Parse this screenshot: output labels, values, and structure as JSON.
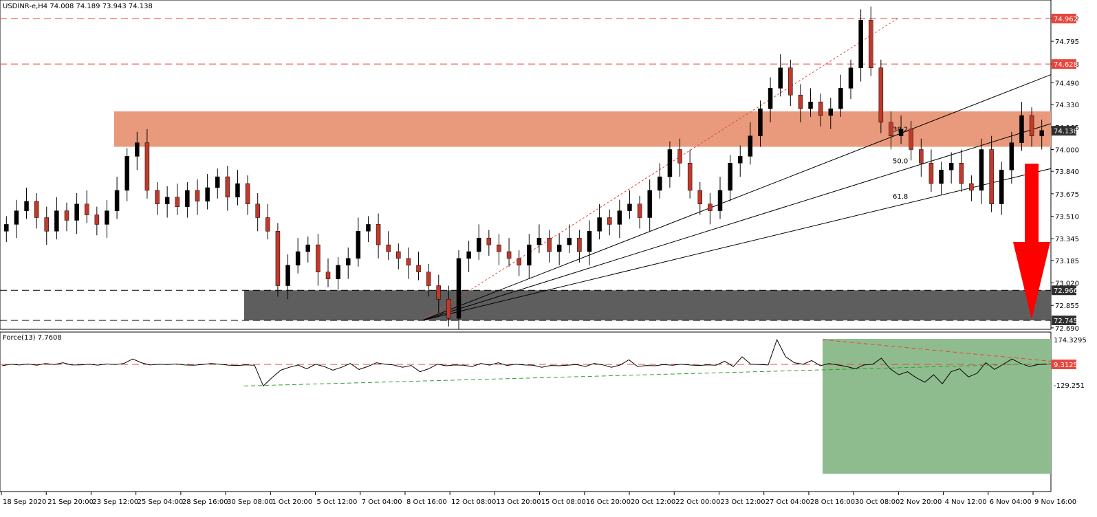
{
  "main_header": {
    "symbol": "USDINR-e,H4",
    "ohlc": "74.008 74.189 73.943 74.138"
  },
  "force_header": {
    "label": "Force(13) 7.7608"
  },
  "chart_data": [
    {
      "type": "candlestick",
      "panel": "price",
      "y_ticks": [
        "74.962",
        "74.795",
        "74.628",
        "74.490",
        "74.330",
        "74.165",
        "74.000",
        "73.840",
        "73.675",
        "73.510",
        "73.345",
        "73.185",
        "73.020",
        "72.855",
        "72.690"
      ],
      "price_labels": [
        {
          "value": "74.962",
          "color": "#e8453c"
        },
        {
          "value": "74.628",
          "color": "#e8453c"
        },
        {
          "value": "74.138",
          "color": "#303030"
        },
        {
          "value": "72.966",
          "color": "#303030"
        },
        {
          "value": "72.745",
          "color": "#303030"
        }
      ],
      "fib_labels": [
        "38.2",
        "50.0",
        "61.8"
      ],
      "resistance_zone": [
        74.02,
        74.28
      ],
      "support_zone": [
        72.745,
        72.966
      ],
      "levels": {
        "red_dashed": [
          74.962,
          74.628
        ],
        "black_dashed": [
          72.966,
          72.745
        ]
      },
      "close_path": [
        73.45,
        73.55,
        73.62,
        73.5,
        73.4,
        73.55,
        73.48,
        73.6,
        73.52,
        73.45,
        73.55,
        73.7,
        73.95,
        74.05,
        73.7,
        73.6,
        73.65,
        73.58,
        73.7,
        73.62,
        73.72,
        73.8,
        73.65,
        73.75,
        73.6,
        73.5,
        73.4,
        73.0,
        73.15,
        73.25,
        73.3,
        73.1,
        73.05,
        73.15,
        73.2,
        73.4,
        73.45,
        73.3,
        73.25,
        73.2,
        73.15,
        73.1,
        73.0,
        72.9,
        72.76,
        73.2,
        73.25,
        73.35,
        73.3,
        73.25,
        73.2,
        73.15,
        73.3,
        73.35,
        73.25,
        73.3,
        73.35,
        73.25,
        73.4,
        73.5,
        73.45,
        73.55,
        73.6,
        73.5,
        73.7,
        73.8,
        74.0,
        73.9,
        73.7,
        73.6,
        73.55,
        73.7,
        73.9,
        73.95,
        74.1,
        74.3,
        74.45,
        74.6,
        74.4,
        74.3,
        74.35,
        74.25,
        74.3,
        74.45,
        74.6,
        74.95,
        74.6,
        74.2,
        74.1,
        74.15,
        74.0,
        73.9,
        73.75,
        73.85,
        73.9,
        73.75,
        73.7,
        74.0,
        73.6,
        73.85,
        74.05,
        74.25,
        74.1,
        74.14
      ],
      "colors": {
        "bull": "#000000",
        "bear": "#c0392b",
        "wick": "#000000"
      },
      "arrow_color": "#ff0000"
    },
    {
      "type": "line",
      "panel": "indicator",
      "name": "Force(13)",
      "y_ticks": [
        "174.3295",
        "0.00",
        "-129.251"
      ],
      "level_label": {
        "value": "9.3125",
        "color": "#e8453c"
      },
      "values": [
        0,
        10,
        5,
        12,
        3,
        15,
        8,
        20,
        5,
        6,
        10,
        4,
        12,
        8,
        15,
        45,
        20,
        5,
        10,
        8,
        12,
        5,
        3,
        8,
        15,
        10,
        4,
        2,
        6,
        3,
        -135,
        -80,
        -30,
        -10,
        5,
        -20,
        10,
        -5,
        -30,
        -10,
        15,
        -25,
        -5,
        20,
        10,
        5,
        -10,
        2,
        -40,
        -20,
        10,
        0,
        5,
        3,
        -5,
        15,
        4,
        20,
        2,
        10,
        5,
        3,
        -10,
        2,
        0,
        4,
        8,
        -5,
        15,
        6,
        -10,
        5,
        40,
        -5,
        2,
        0,
        8,
        3,
        10,
        5,
        2,
        6,
        3,
        30,
        -5,
        60,
        10,
        8,
        5,
        174,
        60,
        20,
        10,
        35,
        0,
        15,
        5,
        -5,
        -20,
        5,
        10,
        50,
        -20,
        -60,
        -40,
        -80,
        -110,
        -60,
        -120,
        -40,
        -20,
        -75,
        -50,
        20,
        -25,
        10,
        45,
        15,
        -5,
        8,
        10
      ],
      "highlight_zone_color": "#8fbc8f"
    }
  ],
  "x_axis_labels": [
    "18 Sep 2020",
    "21 Sep 20:00",
    "23 Sep 12:00",
    "25 Sep 04:00",
    "28 Sep 16:00",
    "30 Sep 08:00",
    "1 Oct 20:00",
    "5 Oct 12:00",
    "7 Oct 04:00",
    "8 Oct 16:00",
    "12 Oct 08:00",
    "13 Oct 20:00",
    "15 Oct 08:00",
    "16 Oct 20:00",
    "20 Oct 12:00",
    "22 Oct 00:00",
    "23 Oct 12:00",
    "27 Oct 04:00",
    "28 Oct 16:00",
    "30 Oct 08:00",
    "2 Nov 20:00",
    "4 Nov 12:00",
    "6 Nov 04:00",
    "9 Nov 16:00"
  ]
}
